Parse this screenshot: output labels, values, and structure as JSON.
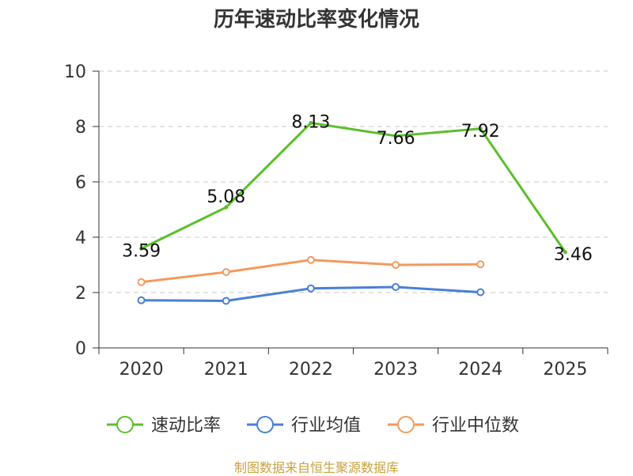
{
  "chart_data": {
    "type": "line",
    "title": "历年速动比率变化情况",
    "categories": [
      "2020",
      "2021",
      "2022",
      "2023",
      "2024",
      "2025"
    ],
    "ylim": [
      0,
      10
    ],
    "yticks": [
      "0",
      "2",
      "4",
      "6",
      "8",
      "10"
    ],
    "grid": true,
    "legend_position": "bottom",
    "series": [
      {
        "name": "速动比率",
        "color": "#5bbf2a",
        "values": [
          3.59,
          5.08,
          8.13,
          7.66,
          7.92,
          3.46
        ],
        "labels": [
          "3.59",
          "5.08",
          "8.13",
          "7.66",
          "7.92",
          "3.46"
        ]
      },
      {
        "name": "行业均值",
        "color": "#4a7fd6",
        "values": [
          1.72,
          1.7,
          2.15,
          2.2,
          2.01,
          null
        ]
      },
      {
        "name": "行业中位数",
        "color": "#f39a5e",
        "values": [
          2.38,
          2.74,
          3.18,
          3.0,
          3.02,
          null
        ]
      }
    ],
    "source": "制图数据来自恒生聚源数据库"
  }
}
